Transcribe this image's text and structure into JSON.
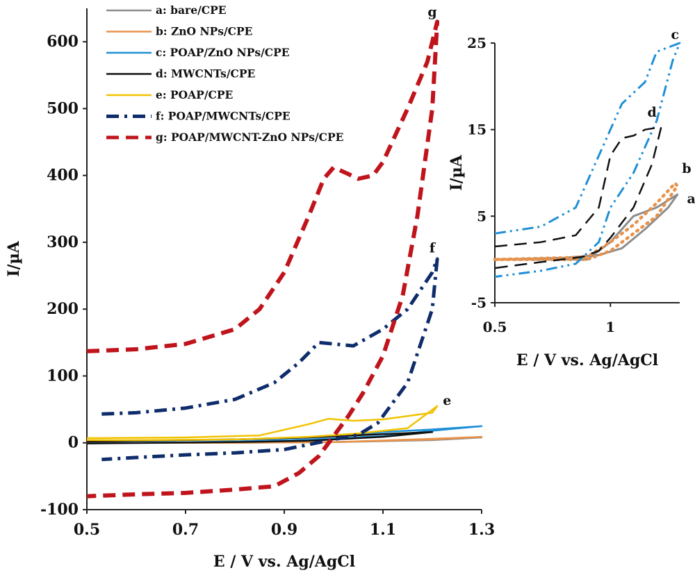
{
  "chart_data": [
    {
      "type": "line",
      "xlabel": "E / V vs. Ag/AgCl",
      "ylabel": "I/µA",
      "xlim": [
        0.5,
        1.3
      ],
      "ylim": [
        -100,
        650
      ],
      "x_ticks": [
        "0.5",
        "0.7",
        "0.9",
        "1.1",
        "1.3"
      ],
      "y_ticks": [
        "-100",
        "0",
        "100",
        "200",
        "300",
        "400",
        "500",
        "600"
      ],
      "grid": false,
      "legend_position": "top-left",
      "legend": [
        {
          "label": "a: bare/CPE",
          "color": "#8c8c8c",
          "style": "solid"
        },
        {
          "label": "b: ZnO NPs/CPE",
          "color": "#e8924a",
          "style": "solid"
        },
        {
          "label": "c: POAP/ZnO NPs/CPE",
          "color": "#1f8fd6",
          "style": "solid"
        },
        {
          "label": "d: MWCNTs/CPE",
          "color": "#111111",
          "style": "solid"
        },
        {
          "label": "e: POAP/CPE",
          "color": "#f2c200",
          "style": "solid"
        },
        {
          "label": "f: POAP/MWCNTs/CPE",
          "color": "#0f2d6b",
          "style": "dashdot"
        },
        {
          "label": "g: POAP/MWCNT-ZnO NPs/CPE",
          "color": "#c0141c",
          "style": "dashed"
        }
      ],
      "series": [
        {
          "key": "a",
          "color": "#8c8c8c",
          "style": "solid",
          "x": [
            0.5,
            0.8,
            1.0,
            1.2,
            1.3,
            1.2,
            1.0,
            0.8,
            0.5
          ],
          "y": [
            0,
            0,
            1,
            4,
            8,
            5,
            1,
            0,
            0
          ]
        },
        {
          "key": "b",
          "color": "#e8924a",
          "style": "solid",
          "x": [
            0.5,
            0.8,
            1.0,
            1.2,
            1.3,
            1.2,
            1.0,
            0.8,
            0.5
          ],
          "y": [
            0,
            0,
            1,
            5,
            9,
            6,
            1,
            0,
            0
          ]
        },
        {
          "key": "c",
          "color": "#1f8fd6",
          "style": "solid",
          "x": [
            0.5,
            0.8,
            0.95,
            1.1,
            1.2,
            1.3,
            1.2,
            1.1,
            0.95,
            0.8,
            0.5
          ],
          "y": [
            3,
            5,
            8,
            16,
            20,
            25,
            18,
            10,
            5,
            2,
            -1
          ]
        },
        {
          "key": "d",
          "color": "#111111",
          "style": "solid",
          "x": [
            0.5,
            0.8,
            0.95,
            1.1,
            1.2,
            1.1,
            0.95,
            0.8,
            0.5
          ],
          "y": [
            2,
            5,
            8,
            13,
            16,
            9,
            3,
            1,
            -1
          ]
        },
        {
          "key": "e",
          "color": "#f2c200",
          "style": "solid",
          "x": [
            0.5,
            0.7,
            0.85,
            0.95,
            0.99,
            1.04,
            1.1,
            1.2,
            1.21,
            1.15,
            1.05,
            0.95,
            0.8,
            0.6,
            0.5
          ],
          "y": [
            7,
            8,
            11,
            28,
            36,
            33,
            35,
            45,
            55,
            22,
            14,
            9,
            5,
            4,
            4
          ]
        },
        {
          "key": "f",
          "color": "#0f2d6b",
          "style": "dashdot",
          "x": [
            0.53,
            0.6,
            0.7,
            0.8,
            0.88,
            0.93,
            0.97,
            1.0,
            1.04,
            1.1,
            1.15,
            1.2,
            1.21,
            1.2,
            1.15,
            1.09,
            1.05,
            1.0,
            0.9,
            0.8,
            0.7,
            0.6,
            0.53
          ],
          "y": [
            43,
            45,
            52,
            65,
            90,
            120,
            150,
            148,
            145,
            170,
            200,
            255,
            275,
            200,
            90,
            30,
            12,
            5,
            -10,
            -15,
            -18,
            -22,
            -25
          ]
        },
        {
          "key": "g",
          "color": "#c0141c",
          "style": "dashed",
          "x": [
            0.5,
            0.6,
            0.7,
            0.8,
            0.85,
            0.9,
            0.95,
            0.98,
            1.0,
            1.03,
            1.05,
            1.08,
            1.1,
            1.15,
            1.19,
            1.21,
            1.2,
            1.17,
            1.14,
            1.1,
            1.06,
            1.03,
            1.0,
            0.97,
            0.93,
            0.88,
            0.8,
            0.7,
            0.6,
            0.5
          ],
          "y": [
            137,
            140,
            148,
            170,
            200,
            255,
            340,
            395,
            412,
            402,
            395,
            400,
            420,
            500,
            570,
            630,
            500,
            340,
            220,
            130,
            75,
            40,
            10,
            -20,
            -45,
            -65,
            -70,
            -75,
            -77,
            -80
          ]
        }
      ],
      "curve_labels": [
        {
          "text": "g",
          "x": 1.2,
          "y": 638
        },
        {
          "text": "f",
          "x": 1.2,
          "y": 285
        },
        {
          "text": "e",
          "x": 1.23,
          "y": 57
        }
      ]
    },
    {
      "type": "line",
      "xlabel": "E / V vs. Ag/AgCl",
      "ylabel": "I/µA",
      "xlim": [
        0.5,
        1.3
      ],
      "ylim": [
        -5,
        25
      ],
      "x_ticks": [
        "0.5",
        "1"
      ],
      "y_ticks": [
        "-5",
        "5",
        "15",
        "25"
      ],
      "grid": false,
      "series": [
        {
          "key": "a",
          "color": "#8c8c8c",
          "style": "solid",
          "x": [
            0.5,
            0.8,
            0.9,
            1.0,
            1.1,
            1.2,
            1.29,
            1.25,
            1.15,
            1.05,
            0.95,
            0.8,
            0.5
          ],
          "y": [
            0,
            0,
            0,
            2,
            5,
            6,
            7.5,
            6,
            3.5,
            1.3,
            0.5,
            0.2,
            0
          ]
        },
        {
          "key": "b",
          "color": "#e8924a",
          "style": "dotted",
          "x": [
            0.5,
            0.8,
            0.9,
            1.0,
            1.1,
            1.2,
            1.29,
            1.28,
            1.2,
            1.1,
            1.0,
            0.9,
            0.8,
            0.5
          ],
          "y": [
            0,
            0,
            0,
            1,
            3,
            5,
            8.5,
            8.8,
            6.5,
            4,
            2,
            0.3,
            0.2,
            0
          ]
        },
        {
          "key": "c",
          "color": "#1f8fd6",
          "style": "dashdotdot",
          "x": [
            0.5,
            0.7,
            0.85,
            0.95,
            1.05,
            1.15,
            1.2,
            1.3,
            1.27,
            1.2,
            1.1,
            1.0,
            0.95,
            0.85,
            0.7,
            0.5
          ],
          "y": [
            3,
            3.8,
            6,
            12,
            18,
            20.5,
            24,
            25,
            23,
            16,
            10,
            6,
            2,
            -0.5,
            -1.3,
            -2
          ]
        },
        {
          "key": "d",
          "color": "#111111",
          "style": "dashed",
          "x": [
            0.5,
            0.7,
            0.85,
            0.95,
            1.0,
            1.05,
            1.1,
            1.15,
            1.22,
            1.18,
            1.1,
            1.0,
            0.95,
            0.88,
            0.7,
            0.5
          ],
          "y": [
            1.5,
            2,
            2.8,
            6,
            12,
            14,
            14.3,
            15,
            15.3,
            11,
            6,
            2.5,
            1,
            0.3,
            -0.3,
            -1
          ]
        }
      ],
      "curve_labels": [
        {
          "text": "c",
          "x": 1.28,
          "y": 25.5
        },
        {
          "text": "d",
          "x": 1.18,
          "y": 16.5
        },
        {
          "text": "b",
          "x": 1.33,
          "y": 10
        },
        {
          "text": "a",
          "x": 1.35,
          "y": 6.5
        }
      ]
    }
  ]
}
